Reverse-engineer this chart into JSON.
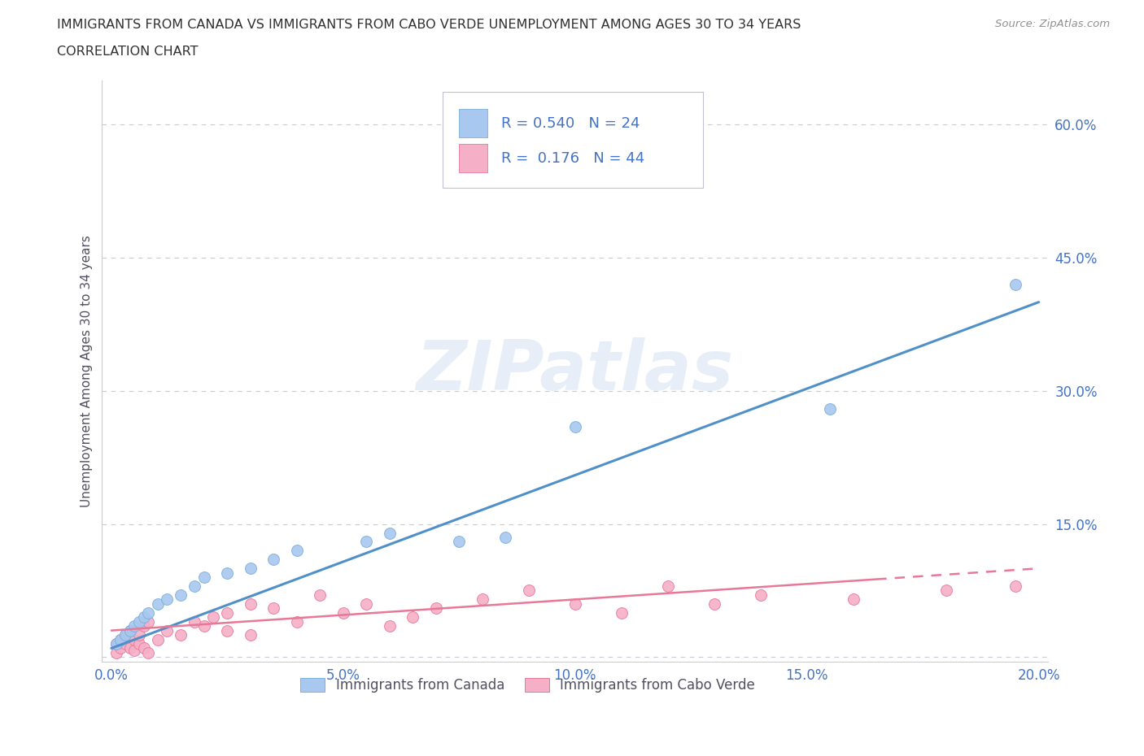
{
  "title_line1": "IMMIGRANTS FROM CANADA VS IMMIGRANTS FROM CABO VERDE UNEMPLOYMENT AMONG AGES 30 TO 34 YEARS",
  "title_line2": "CORRELATION CHART",
  "source": "Source: ZipAtlas.com",
  "ylabel": "Unemployment Among Ages 30 to 34 years",
  "watermark": "ZIPatlas",
  "canada_x": [
    0.001,
    0.002,
    0.003,
    0.004,
    0.005,
    0.006,
    0.007,
    0.008,
    0.01,
    0.012,
    0.015,
    0.018,
    0.02,
    0.025,
    0.03,
    0.035,
    0.04,
    0.055,
    0.06,
    0.075,
    0.085,
    0.1,
    0.155,
    0.195
  ],
  "canada_y": [
    0.015,
    0.02,
    0.025,
    0.03,
    0.035,
    0.04,
    0.045,
    0.05,
    0.06,
    0.065,
    0.07,
    0.08,
    0.09,
    0.095,
    0.1,
    0.11,
    0.12,
    0.13,
    0.14,
    0.13,
    0.135,
    0.26,
    0.28,
    0.42
  ],
  "caboverde_x": [
    0.001,
    0.001,
    0.002,
    0.002,
    0.003,
    0.003,
    0.004,
    0.004,
    0.005,
    0.005,
    0.006,
    0.006,
    0.007,
    0.007,
    0.008,
    0.008,
    0.01,
    0.012,
    0.015,
    0.018,
    0.02,
    0.022,
    0.025,
    0.025,
    0.03,
    0.03,
    0.035,
    0.04,
    0.045,
    0.05,
    0.055,
    0.06,
    0.065,
    0.07,
    0.08,
    0.09,
    0.1,
    0.11,
    0.12,
    0.13,
    0.14,
    0.16,
    0.18,
    0.195
  ],
  "caboverde_y": [
    0.005,
    0.015,
    0.01,
    0.02,
    0.015,
    0.025,
    0.01,
    0.03,
    0.008,
    0.02,
    0.015,
    0.025,
    0.01,
    0.035,
    0.005,
    0.04,
    0.02,
    0.03,
    0.025,
    0.04,
    0.035,
    0.045,
    0.03,
    0.05,
    0.025,
    0.06,
    0.055,
    0.04,
    0.07,
    0.05,
    0.06,
    0.035,
    0.045,
    0.055,
    0.065,
    0.075,
    0.06,
    0.05,
    0.08,
    0.06,
    0.07,
    0.065,
    0.075,
    0.08
  ],
  "canada_R": 0.54,
  "canada_N": 24,
  "caboverde_R": 0.176,
  "caboverde_N": 44,
  "canada_scatter_color": "#a8c8f0",
  "canada_scatter_edge": "#7ab0d8",
  "caboverde_scatter_color": "#f5b0c8",
  "caboverde_scatter_edge": "#e87898",
  "canada_line_color": "#5090c8",
  "caboverde_line_color": "#e87898",
  "xlim": [
    -0.002,
    0.202
  ],
  "ylim": [
    -0.005,
    0.65
  ],
  "xticks": [
    0.0,
    0.05,
    0.1,
    0.15,
    0.2
  ],
  "yticks": [
    0.0,
    0.15,
    0.3,
    0.45,
    0.6
  ],
  "xtick_labels": [
    "0.0%",
    "5.0%",
    "10.0%",
    "15.0%",
    "20.0%"
  ],
  "ytick_labels": [
    "",
    "15.0%",
    "30.0%",
    "45.0%",
    "60.0%"
  ],
  "grid_color": "#c8c8d8",
  "bg_color": "#ffffff",
  "title_color": "#303030",
  "axis_label_color": "#505060",
  "tick_color": "#4472c4",
  "legend_text_color": "#4472c4"
}
